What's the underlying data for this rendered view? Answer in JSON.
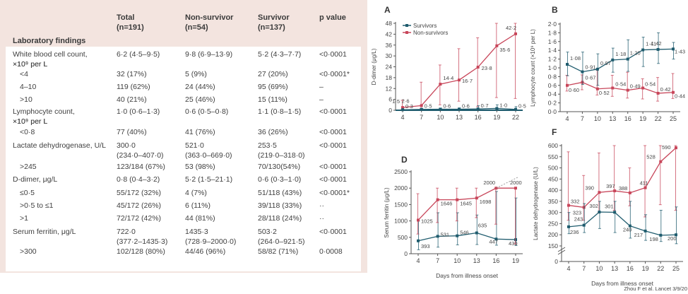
{
  "table": {
    "headers": [
      {
        "title": "Total",
        "n": "(n=191)"
      },
      {
        "title": "Non-survivor",
        "n": "(n=54)"
      },
      {
        "title": "Survivor",
        "n": "(n=137)"
      },
      {
        "title": "p value",
        "n": ""
      }
    ],
    "section": "Laboratory findings",
    "rows": [
      {
        "label": "White blood cell count,",
        "label2": "×10⁹ per L",
        "sub": false,
        "total": "6·2 (4·5–9·5)",
        "non": "9·8 (6·9–13·9)",
        "surv": "5·2 (4·3–7·7)",
        "p": "<0·0001"
      },
      {
        "label": "<4",
        "sub": true,
        "total": "32 (17%)",
        "non": "5 (9%)",
        "surv": "27 (20%)",
        "p": "<0·0001*"
      },
      {
        "label": "4–10",
        "sub": true,
        "total": "119 (62%)",
        "non": "24 (44%)",
        "surv": "95 (69%)",
        "p": "–"
      },
      {
        "label": ">10",
        "sub": true,
        "total": "40 (21%)",
        "non": "25 (46%)",
        "surv": "15 (11%)",
        "p": "–"
      },
      {
        "label": "Lymphocyte count,",
        "label2": "×10⁹ per L",
        "sub": false,
        "total": "1·0 (0·6–1·3)",
        "non": "0·6 (0·5–0·8)",
        "surv": "1·1 (0·8–1·5)",
        "p": "<0·0001"
      },
      {
        "label": "<0·8",
        "sub": true,
        "total": "77 (40%)",
        "non": "41 (76%)",
        "surv": "36 (26%)",
        "p": "<0·0001"
      },
      {
        "label": "Lactate dehydrogenase, U/L",
        "sub": false,
        "total": "300·0",
        "total2": "(234·0–407·0)",
        "non": "521·0",
        "non2": "(363·0–669·0)",
        "surv": "253·5",
        "surv2": "(219·0–318·0)",
        "p": "<0·0001"
      },
      {
        "label": ">245",
        "sub": true,
        "total": "123/184 (67%)",
        "non": "53 (98%)",
        "surv": "70/130(54%)",
        "p": "<0·0001"
      },
      {
        "label": "D-dimer, μg/L",
        "sub": false,
        "total": "0·8 (0·4–3·2)",
        "non": "5·2 (1·5–21·1)",
        "surv": "0·6 (0·3–1·0)",
        "p": "<0·0001"
      },
      {
        "label": "≤0·5",
        "sub": true,
        "total": "55/172 (32%)",
        "non": "4 (7%)",
        "surv": "51/118 (43%)",
        "p": "<0·0001*"
      },
      {
        "label": ">0·5 to ≤1",
        "sub": true,
        "total": "45/172 (26%)",
        "non": "6 (11%)",
        "surv": "39/118 (33%)",
        "p": "··"
      },
      {
        "label": ">1",
        "sub": true,
        "total": "72/172 (42%)",
        "non": "44 (81%)",
        "surv": "28/118 (24%)",
        "p": "··"
      },
      {
        "label": "Serum ferritin, μg/L",
        "sub": false,
        "total": "722·0",
        "total2": "(377·2–1435·3)",
        "non": "1435·3",
        "non2": "(728·9–2000·0)",
        "surv": "503·2",
        "surv2": "(264·0–921·5)",
        "p": "<0·0001"
      },
      {
        "label": ">300",
        "sub": true,
        "total": "102/128 (80%)",
        "non": "44/46 (96%)",
        "surv": "58/82 (71%)",
        "p": "0·0008"
      }
    ]
  },
  "colors": {
    "survivors": "#1f5c6e",
    "non_survivors": "#c8465a",
    "table_bg": "#f3e4df"
  },
  "citation": "Zhou F et al.  Lancet 3/9/20",
  "chart_data": [
    {
      "panel": "A",
      "type": "line",
      "ylabel": "D-dimer (μg/L)",
      "xlabel": "",
      "x": [
        4,
        7,
        10,
        13,
        16,
        19,
        22
      ],
      "yticks": [
        0,
        6,
        12,
        18,
        24,
        30,
        36,
        42,
        48
      ],
      "ylim": [
        0,
        48
      ],
      "legend": [
        "Survivors",
        "Non-survivors"
      ],
      "legend_position": "top-left",
      "series": [
        {
          "name": "Survivors",
          "values": [
            0.3,
            0.5,
            0.6,
            0.6,
            0.7,
            1.0,
            0.5
          ],
          "err_low": [
            0.2,
            0.3,
            0.3,
            0.3,
            0.4,
            0.5,
            0.3
          ],
          "err_high": [
            0.6,
            1.0,
            1.2,
            1.3,
            2.5,
            3.0,
            2.0
          ]
        },
        {
          "name": "Non-survivors",
          "values": [
            1.5,
            2.6,
            14.4,
            16.7,
            23.8,
            35.6,
            42.2
          ],
          "err_low": [
            0.5,
            1.0,
            3.0,
            5.0,
            2.0,
            7.0,
            6.5
          ],
          "err_high": [
            5.5,
            15.5,
            25.0,
            34.0,
            40.0,
            48.0,
            48.0
          ]
        }
      ],
      "labels": {
        "Survivors": [
          "0·3",
          "0·5",
          "0·6",
          "0·6",
          "0·7",
          "1·0",
          "0·5"
        ],
        "Non-survivors": [
          "1·5",
          "2·6",
          "14·4",
          "16·7",
          "23·8",
          "35·6",
          "42·2"
        ]
      }
    },
    {
      "panel": "B",
      "type": "line",
      "ylabel": "Lymphocyte count (×10⁹ per L)",
      "xlabel": "",
      "x": [
        4,
        7,
        10,
        13,
        16,
        19,
        22,
        25
      ],
      "yticks": [
        0.0,
        0.2,
        0.4,
        0.6,
        0.8,
        1.0,
        1.2,
        1.4,
        1.6,
        1.8,
        2.0
      ],
      "ylim": [
        0,
        2.0
      ],
      "series": [
        {
          "name": "Survivors",
          "values": [
            1.08,
            0.91,
            0.97,
            1.18,
            1.2,
            1.41,
            1.42,
            1.43
          ],
          "err_low": [
            0.82,
            0.62,
            0.6,
            0.9,
            0.92,
            1.03,
            1.1,
            1.2
          ],
          "err_high": [
            1.36,
            1.36,
            1.32,
            1.45,
            1.64,
            1.7,
            1.8,
            1.58
          ]
        },
        {
          "name": "Non-survivors",
          "values": [
            0.6,
            0.67,
            0.52,
            0.54,
            0.49,
            0.54,
            0.42,
            0.44
          ],
          "err_low": [
            0.47,
            0.5,
            0.38,
            0.35,
            0.31,
            0.29,
            0.24,
            0.3
          ],
          "err_high": [
            0.83,
            0.84,
            0.95,
            0.83,
            0.9,
            0.75,
            0.78,
            0.87
          ]
        }
      ],
      "labels": {
        "Survivors": [
          "1·08",
          "0·91",
          "0·97",
          "1·18",
          "1·20",
          "1·41",
          "1·42",
          "1·43"
        ],
        "Non-survivors": [
          "0·60",
          "0·67",
          "0·52",
          "0·54",
          "0·49",
          "0·54",
          "0·42",
          "0·44"
        ]
      }
    },
    {
      "panel": "D",
      "type": "line",
      "ylabel": "Serum ferritin (μg/L)",
      "xlabel": "Days from illness onset",
      "x": [
        4,
        7,
        10,
        13,
        16,
        19
      ],
      "yticks": [
        0,
        500,
        1000,
        1500,
        2000,
        2500
      ],
      "ylim": [
        0,
        2500
      ],
      "series": [
        {
          "name": "Survivors",
          "values": [
            393,
            531,
            546,
            635,
            447,
            430
          ],
          "err_low": [
            120,
            200,
            270,
            280,
            260,
            250
          ],
          "err_high": [
            1000,
            1250,
            1250,
            1180,
            1900,
            1700
          ]
        },
        {
          "name": "Non-survivors",
          "values": [
            1025,
            1646,
            1645,
            1698,
            2000,
            2000
          ],
          "err_low": [
            600,
            950,
            1000,
            1100,
            900,
            300
          ],
          "err_high": [
            1830,
            2000,
            2000,
            2000,
            2000,
            2000
          ]
        }
      ],
      "labels": {
        "Survivors": [
          "393",
          "531",
          "546",
          "635",
          "447",
          "430"
        ],
        "Non-survivors": [
          "1025",
          "1646",
          "1645",
          "1698",
          "2000",
          "2000"
        ]
      }
    },
    {
      "panel": "F",
      "type": "line",
      "ylabel": "Lactate dehydrogenase (U/L)",
      "xlabel": "Days from illness onset",
      "x": [
        4,
        7,
        10,
        13,
        16,
        19,
        22,
        25
      ],
      "yticks": [
        0,
        150,
        200,
        250,
        300,
        350,
        400,
        450,
        500,
        550,
        600
      ],
      "ylim": [
        0,
        600
      ],
      "axis_break": [
        0,
        150
      ],
      "series": [
        {
          "name": "Survivors",
          "values": [
            236,
            243,
            302,
            301,
            240,
            217,
            198,
            200
          ],
          "err_low": [
            205,
            210,
            228,
            210,
            185,
            175,
            170,
            160
          ],
          "err_high": [
            300,
            340,
            350,
            350,
            350,
            290,
            310,
            325
          ]
        },
        {
          "name": "Non-survivors",
          "values": [
            332,
            323,
            390,
            397,
            388,
            411,
            528,
            590
          ],
          "err_low": [
            265,
            265,
            300,
            310,
            330,
            280,
            335,
            310
          ],
          "err_high": [
            572,
            466,
            567,
            600,
            500,
            600,
            600,
            600
          ]
        }
      ],
      "labels": {
        "Survivors": [
          "236",
          "243",
          "302",
          "301",
          "240",
          "217",
          "198",
          "200"
        ],
        "Non-survivors": [
          "332",
          "323",
          "390",
          "397",
          "388",
          "411",
          "528",
          "590"
        ]
      }
    }
  ]
}
